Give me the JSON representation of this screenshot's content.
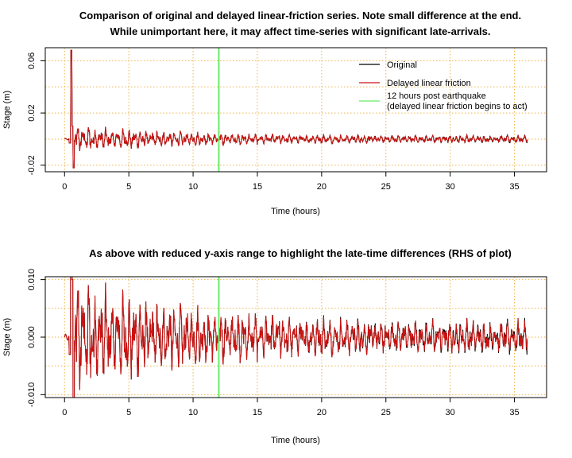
{
  "colors": {
    "original": "#000000",
    "delayed": "#cc1111",
    "marker": "#66ee66",
    "grid": "#f0b44a"
  },
  "chart_data": [
    {
      "type": "line",
      "title_line1": "Comparison of original and delayed linear-friction series. Note small difference at the end.",
      "title_line2": "While unimportant here, it may affect time-series with significant late-arrivals.",
      "xlabel": "Time (hours)",
      "ylabel": "Stage (m)",
      "xlim": [
        -1.5,
        37.5
      ],
      "ylim": [
        -0.025,
        0.07
      ],
      "xticks": [
        0,
        5,
        10,
        15,
        20,
        25,
        30,
        35
      ],
      "xtick_labels": [
        "0",
        "5",
        "10",
        "15",
        "20",
        "25",
        "30",
        "35"
      ],
      "yticks": [
        -0.02,
        0.02,
        0.06
      ],
      "ytick_labels": [
        "-0.02",
        "0.02",
        "0.06"
      ],
      "ygrid": [
        -0.02,
        0.0,
        0.02,
        0.04,
        0.06
      ],
      "grid": true,
      "legend_position": "top-right",
      "legend": [
        {
          "label": "Original",
          "color_key": "original"
        },
        {
          "label": "Delayed linear friction",
          "color_key": "delayed"
        },
        {
          "label": "12 hours post earthquake\n (delayed linear friction begins to act)",
          "color_key": "marker"
        }
      ],
      "vline_x": 12,
      "series": [
        {
          "name": "Original",
          "x_range": [
            0,
            36
          ]
        },
        {
          "name": "Delayed linear friction",
          "x_range": [
            0,
            36
          ]
        }
      ],
      "features": {
        "spike_peak": {
          "x": 0.55,
          "y": 0.068
        },
        "spike_trough": {
          "x": 0.7,
          "y": -0.022
        },
        "amplitude_early": 0.007,
        "amplitude_late": 0.002
      }
    },
    {
      "type": "line",
      "title": "As above with reduced y-axis range to highlight the late-time differences (RHS of plot)",
      "xlabel": "Time (hours)",
      "ylabel": "Stage (m)",
      "xlim": [
        -1.5,
        37.5
      ],
      "ylim": [
        -0.0105,
        0.0105
      ],
      "xticks": [
        0,
        5,
        10,
        15,
        20,
        25,
        30,
        35
      ],
      "xtick_labels": [
        "0",
        "5",
        "10",
        "15",
        "20",
        "25",
        "30",
        "35"
      ],
      "yticks": [
        -0.01,
        0.0,
        0.01
      ],
      "ytick_labels": [
        "-0.010",
        "0.000",
        "0.010"
      ],
      "ygrid": [
        -0.01,
        -0.005,
        0.0,
        0.005,
        0.01
      ],
      "grid": true,
      "vline_x": 12,
      "series": [
        {
          "name": "Original",
          "x_range": [
            0,
            36
          ]
        },
        {
          "name": "Delayed linear friction",
          "x_range": [
            0,
            36
          ]
        }
      ]
    }
  ]
}
